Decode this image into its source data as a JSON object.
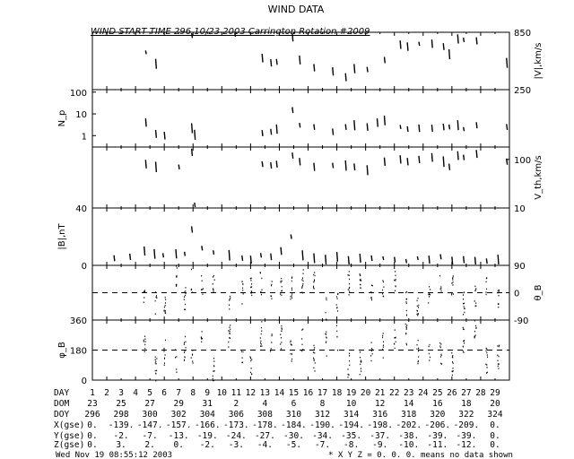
{
  "title": "WIND DATA",
  "subtitle": "WIND START TIME 296 10/23 2003 Carrington Rotation #2009",
  "footer_date": "Wed Nov 19 08:55:12 2003",
  "footer_note": "* X Y Z = 0. 0. 0. means no data shown",
  "table": {
    "row_labels": [
      "DAY",
      "DOM",
      "DOY",
      "X(gse)",
      "Y(gse)",
      "Z(gse)"
    ],
    "day": [
      "1",
      "2",
      "3",
      "4",
      "5",
      "6",
      "7",
      "8",
      "9",
      "10",
      "11",
      "12",
      "13",
      "14",
      "15",
      "16",
      "17",
      "18",
      "19",
      "20",
      "21",
      "22",
      "23",
      "24",
      "25",
      "26",
      "27",
      "28",
      "29"
    ],
    "dom": [
      "23",
      "25",
      "27",
      "29",
      "31",
      "2",
      "4",
      "6",
      "8",
      "10",
      "12",
      "14",
      "16",
      "18",
      "20"
    ],
    "doy": [
      "296",
      "298",
      "300",
      "302",
      "304",
      "306",
      "308",
      "310",
      "312",
      "314",
      "316",
      "318",
      "320",
      "322",
      "324"
    ],
    "x_gse": [
      "0.",
      "-139.",
      "-147.",
      "-157.",
      "-166.",
      "-173.",
      "-178.",
      "-184.",
      "-190.",
      "-194.",
      "-198.",
      "-202.",
      "-206.",
      "-209.",
      "0."
    ],
    "y_gse": [
      "0.",
      "-2.",
      "-7.",
      "-13.",
      "-19.",
      "-24.",
      "-27.",
      "-30.",
      "-34.",
      "-35.",
      "-37.",
      "-38.",
      "-39.",
      "-39.",
      "0."
    ],
    "z_gse": [
      "0.",
      "3.",
      "2.",
      "0.",
      "-2.",
      "-3.",
      "-4.",
      "-5.",
      "-7.",
      "-8.",
      "-9.",
      "-10.",
      "-11.",
      "-12.",
      "0."
    ]
  },
  "chart_data": {
    "type": "scatter",
    "x_unit": "day",
    "xlim": [
      0,
      29
    ],
    "panels": [
      {
        "name": "speed",
        "ylabel_right": "|V|,km/s",
        "yscale": "linear",
        "ylim": [
          250,
          850
        ],
        "right_ticks": [
          "850",
          "250"
        ],
        "data": [
          [
            3.7,
            640
          ],
          [
            4.4,
            520
          ],
          [
            6.9,
            820
          ],
          [
            9.9,
            830
          ],
          [
            11.8,
            580
          ],
          [
            12.4,
            530
          ],
          [
            12.8,
            540
          ],
          [
            13.9,
            800
          ],
          [
            14.4,
            560
          ],
          [
            15.4,
            480
          ],
          [
            16.7,
            440
          ],
          [
            17.6,
            380
          ],
          [
            18.2,
            470
          ],
          [
            19.1,
            460
          ],
          [
            20.3,
            560
          ],
          [
            21.4,
            720
          ],
          [
            21.9,
            700
          ],
          [
            22.7,
            730
          ],
          [
            23.6,
            730
          ],
          [
            24.4,
            700
          ],
          [
            24.8,
            620
          ],
          [
            25.4,
            780
          ],
          [
            25.8,
            770
          ],
          [
            26.7,
            760
          ],
          [
            28.8,
            530
          ]
        ]
      },
      {
        "name": "density",
        "ylabel_left": "N_p",
        "yscale": "log",
        "ylim": [
          0.3,
          130
        ],
        "left_ticks": [
          "100",
          "10",
          "1"
        ],
        "data": [
          [
            3.7,
            4
          ],
          [
            4.4,
            1.2
          ],
          [
            5.0,
            1
          ],
          [
            6.9,
            2.2
          ],
          [
            7.1,
            1.1
          ],
          [
            11.8,
            1.3
          ],
          [
            12.4,
            1.5
          ],
          [
            12.8,
            2
          ],
          [
            13.9,
            15
          ],
          [
            14.4,
            3
          ],
          [
            15.4,
            2.5
          ],
          [
            16.7,
            1.5
          ],
          [
            17.6,
            2.5
          ],
          [
            18.2,
            3
          ],
          [
            19.1,
            2.5
          ],
          [
            19.8,
            4
          ],
          [
            20.3,
            5
          ],
          [
            21.4,
            2.5
          ],
          [
            21.9,
            2
          ],
          [
            22.7,
            2.2
          ],
          [
            23.6,
            2.2
          ],
          [
            24.4,
            2.5
          ],
          [
            24.8,
            2.5
          ],
          [
            25.4,
            3
          ],
          [
            25.8,
            2
          ],
          [
            26.7,
            3
          ],
          [
            28.8,
            2.5
          ]
        ]
      },
      {
        "name": "thermal-speed",
        "ylabel_right": "V_th,km/s",
        "yscale": "log",
        "ylim": [
          10,
          180
        ],
        "right_ticks": [
          "100",
          "10"
        ],
        "data": [
          [
            3.7,
            80
          ],
          [
            4.4,
            70
          ],
          [
            6.9,
            140
          ],
          [
            6.0,
            70
          ],
          [
            7.1,
            11
          ],
          [
            11.8,
            80
          ],
          [
            12.4,
            75
          ],
          [
            12.8,
            80
          ],
          [
            13.9,
            120
          ],
          [
            14.4,
            90
          ],
          [
            15.4,
            70
          ],
          [
            16.7,
            75
          ],
          [
            17.6,
            75
          ],
          [
            18.2,
            70
          ],
          [
            19.1,
            60
          ],
          [
            20.3,
            90
          ],
          [
            21.4,
            100
          ],
          [
            21.9,
            90
          ],
          [
            22.7,
            100
          ],
          [
            23.6,
            110
          ],
          [
            24.4,
            90
          ],
          [
            24.8,
            70
          ],
          [
            25.4,
            120
          ],
          [
            25.8,
            110
          ],
          [
            26.7,
            130
          ],
          [
            28.8,
            90
          ]
        ]
      },
      {
        "name": "field-magnitude",
        "ylabel_left": "|B|,nT",
        "yscale": "linear",
        "ylim": [
          0,
          40
        ],
        "left_ticks": [
          "40",
          "0"
        ],
        "data": [
          [
            1.5,
            5
          ],
          [
            2.6,
            6
          ],
          [
            3.6,
            10
          ],
          [
            4.3,
            8
          ],
          [
            4.9,
            7
          ],
          [
            5.8,
            8
          ],
          [
            6.4,
            8
          ],
          [
            6.9,
            25
          ],
          [
            7.6,
            12
          ],
          [
            8.4,
            9
          ],
          [
            9.5,
            7
          ],
          [
            10.4,
            5
          ],
          [
            11.0,
            4
          ],
          [
            11.7,
            7
          ],
          [
            12.4,
            6
          ],
          [
            13.1,
            10
          ],
          [
            13.8,
            20
          ],
          [
            14.6,
            7
          ],
          [
            15.4,
            5
          ],
          [
            16.2,
            4
          ],
          [
            17.0,
            6
          ],
          [
            17.8,
            3
          ],
          [
            18.6,
            5
          ],
          [
            19.4,
            5
          ],
          [
            20.2,
            5
          ],
          [
            21.0,
            4
          ],
          [
            21.8,
            3
          ],
          [
            22.6,
            5
          ],
          [
            23.4,
            4
          ],
          [
            24.2,
            6
          ],
          [
            25.0,
            3
          ],
          [
            25.8,
            4
          ],
          [
            26.6,
            3
          ],
          [
            27.4,
            3
          ],
          [
            28.2,
            4
          ]
        ]
      },
      {
        "name": "theta-b",
        "ylabel_right": "θ_B",
        "yscale": "linear",
        "ylim": [
          -90,
          90
        ],
        "right_ticks": [
          "90",
          "0",
          "-90"
        ],
        "reference_line": 0
      },
      {
        "name": "phi-b",
        "ylabel_left": "φ_B",
        "yscale": "linear",
        "ylim": [
          0,
          360
        ],
        "left_ticks": [
          "360",
          "180",
          "0"
        ],
        "reference_line": 180
      }
    ]
  }
}
